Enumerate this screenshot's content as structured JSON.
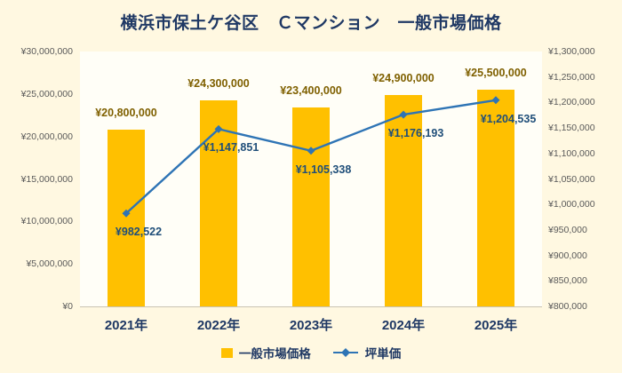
{
  "title": "横浜市保土ケ谷区　Ｃマンション　一般市場価格",
  "background_color": "#FFF8E1",
  "colors": {
    "title": "#1F3864",
    "axis_ticks": "#595959",
    "category_labels": "#1F3864",
    "legend_text": "#1F3864"
  },
  "chart_data": {
    "type": "bar+line combo",
    "title": "横浜市保土ケ谷区　Ｃマンション　一般市場価格",
    "categories": [
      "2021年",
      "2022年",
      "2023年",
      "2024年",
      "2025年"
    ],
    "series": [
      {
        "name": "一般市場価格",
        "type": "bar",
        "axis": "left",
        "color": "#FFC000",
        "label_color": "#7F6000",
        "values": [
          20800000,
          24300000,
          23400000,
          24900000,
          25500000
        ],
        "labels": [
          "¥20,800,000",
          "¥24,300,000",
          "¥23,400,000",
          "¥24,900,000",
          "¥25,500,000"
        ]
      },
      {
        "name": "坪単価",
        "type": "line",
        "marker": "diamond",
        "axis": "right",
        "color": "#2E74B5",
        "label_color": "#1F4E79",
        "values": [
          982522,
          1147851,
          1105338,
          1176193,
          1204535
        ],
        "labels": [
          "¥982,522",
          "¥1,147,851",
          "¥1,105,338",
          "¥1,176,193",
          "¥1,204,535"
        ]
      }
    ],
    "left_axis": {
      "min": 0,
      "max": 30000000,
      "step": 5000000,
      "tick_labels": [
        "¥0",
        "¥5,000,000",
        "¥10,000,000",
        "¥15,000,000",
        "¥20,000,000",
        "¥25,000,000",
        "¥30,000,000"
      ]
    },
    "right_axis": {
      "min": 800000,
      "max": 1300000,
      "step": 50000,
      "tick_labels": [
        "¥800,000",
        "¥850,000",
        "¥900,000",
        "¥950,000",
        "¥1,000,000",
        "¥1,050,000",
        "¥1,100,000",
        "¥1,150,000",
        "¥1,200,000",
        "¥1,250,000",
        "¥1,300,000"
      ]
    },
    "grid": false,
    "legend_position": "bottom"
  }
}
